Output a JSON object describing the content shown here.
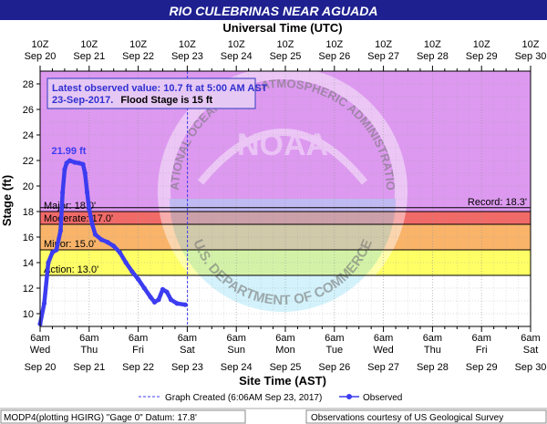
{
  "chart_data": {
    "type": "line",
    "title": "RIO CULEBRINAS NEAR AGUADA",
    "top_axis_title": "Universal Time (UTC)",
    "xlabel": "Site Time (AST)",
    "ylabel": "Stage (ft)",
    "ylim": [
      9,
      29
    ],
    "xlim": [
      "2017-09-20 06:00",
      "2017-09-30 06:00"
    ],
    "x_time_zone": "AST",
    "grid": true,
    "y_ticks": [
      10,
      12,
      14,
      16,
      18,
      20,
      22,
      24,
      26,
      28
    ],
    "y_tick_labels": [
      "10",
      "12",
      "14",
      "16",
      "18",
      "20",
      "22",
      "24",
      "26",
      "28"
    ],
    "top_tick_labels": [
      {
        "time": "10Z",
        "date": "Sep 20"
      },
      {
        "time": "10Z",
        "date": "Sep 21"
      },
      {
        "time": "10Z",
        "date": "Sep 22"
      },
      {
        "time": "10Z",
        "date": "Sep 23"
      },
      {
        "time": "10Z",
        "date": "Sep 24"
      },
      {
        "time": "10Z",
        "date": "Sep 25"
      },
      {
        "time": "10Z",
        "date": "Sep 26"
      },
      {
        "time": "10Z",
        "date": "Sep 27"
      },
      {
        "time": "10Z",
        "date": "Sep 28"
      },
      {
        "time": "10Z",
        "date": "Sep 29"
      },
      {
        "time": "10Z",
        "date": "Sep 30"
      }
    ],
    "bottom_tick_labels": [
      {
        "time": "6am",
        "day": "Wed",
        "date": "Sep 20"
      },
      {
        "time": "6am",
        "day": "Thu",
        "date": "Sep 21"
      },
      {
        "time": "6am",
        "day": "Fri",
        "date": "Sep 22"
      },
      {
        "time": "6am",
        "day": "Sat",
        "date": "Sep 23"
      },
      {
        "time": "6am",
        "day": "Sun",
        "date": "Sep 24"
      },
      {
        "time": "6am",
        "day": "Mon",
        "date": "Sep 25"
      },
      {
        "time": "6am",
        "day": "Tue",
        "date": "Sep 26"
      },
      {
        "time": "6am",
        "day": "Wed",
        "date": "Sep 27"
      },
      {
        "time": "6am",
        "day": "Thu",
        "date": "Sep 28"
      },
      {
        "time": "6am",
        "day": "Fri",
        "date": "Sep 29"
      },
      {
        "time": "6am",
        "day": "Sat",
        "date": "Sep 30"
      }
    ],
    "flood_categories": [
      {
        "name": "major",
        "label": "Major: 18.0'",
        "from": 18.0,
        "to": 29,
        "color": "#dd99f0"
      },
      {
        "name": "moderate",
        "label": "Moderate: 17.0'",
        "from": 17.0,
        "to": 18.0,
        "color": "#f06a68"
      },
      {
        "name": "minor",
        "label": "Minor: 15.0'",
        "from": 15.0,
        "to": 17.0,
        "color": "#f9b46a"
      },
      {
        "name": "action",
        "label": "Action: 13.0'",
        "from": 13.0,
        "to": 15.0,
        "color": "#ffff66"
      }
    ],
    "record": {
      "label": "Record: 18.3'",
      "value": 18.3
    },
    "info_box": {
      "line1": "Latest observed value: 10.7 ft at 5:00 AM AST",
      "line2_date": "23-Sep-2017.",
      "line2_rest": "Flood Stage is 15 ft"
    },
    "peak_label": {
      "text": "21.99 ft",
      "x": "2017-09-20 20:30",
      "y": 21.99
    },
    "graph_created_x": "2017-09-23 06:06",
    "series": [
      {
        "name": "Observed",
        "color": "#3c3cf0",
        "points": [
          [
            "2017-09-20 06:00",
            9.2
          ],
          [
            "2017-09-20 08:00",
            10.8
          ],
          [
            "2017-09-20 10:00",
            14.0
          ],
          [
            "2017-09-20 12:00",
            14.8
          ],
          [
            "2017-09-20 14:00",
            15.0
          ],
          [
            "2017-09-20 16:00",
            16.5
          ],
          [
            "2017-09-20 17:00",
            19.5
          ],
          [
            "2017-09-20 18:00",
            21.3
          ],
          [
            "2017-09-20 19:00",
            21.8
          ],
          [
            "2017-09-20 20:30",
            21.99
          ],
          [
            "2017-09-20 23:00",
            21.85
          ],
          [
            "2017-09-21 01:00",
            21.8
          ],
          [
            "2017-09-21 03:00",
            21.7
          ],
          [
            "2017-09-21 04:00",
            21.0
          ],
          [
            "2017-09-21 05:00",
            19.5
          ],
          [
            "2017-09-21 06:00",
            18.2
          ],
          [
            "2017-09-21 07:30",
            17.0
          ],
          [
            "2017-09-21 09:00",
            16.2
          ],
          [
            "2017-09-21 12:00",
            15.8
          ],
          [
            "2017-09-21 15:00",
            15.6
          ],
          [
            "2017-09-21 18:00",
            15.3
          ],
          [
            "2017-09-21 21:00",
            14.8
          ],
          [
            "2017-09-22 00:00",
            14.0
          ],
          [
            "2017-09-22 03:00",
            13.3
          ],
          [
            "2017-09-22 06:00",
            12.7
          ],
          [
            "2017-09-22 09:00",
            12.0
          ],
          [
            "2017-09-22 12:00",
            11.3
          ],
          [
            "2017-09-22 14:00",
            10.9
          ],
          [
            "2017-09-22 16:00",
            11.1
          ],
          [
            "2017-09-22 18:00",
            11.9
          ],
          [
            "2017-09-22 20:00",
            11.7
          ],
          [
            "2017-09-22 22:00",
            11.1
          ],
          [
            "2017-09-23 01:00",
            10.8
          ],
          [
            "2017-09-23 05:00",
            10.7
          ]
        ]
      }
    ]
  },
  "legend": {
    "graph_created": "Graph Created (6:06AM Sep 23, 2017)",
    "observed": "Observed"
  },
  "footer": {
    "left": "MODP4(plotting HGIRG) \"Gage 0\" Datum: 17.8'",
    "right": "Observations courtesy of US Geological Survey"
  },
  "watermark": {
    "text_top": "NATIONAL OCEANIC AND ATMOSPHERIC ADMINISTRATION",
    "text_bottom": "U.S. DEPARTMENT OF COMMERCE",
    "logo": "NOAA"
  },
  "colors": {
    "title_bg": "#1e2090",
    "title_fg": "#ffffff",
    "line": "#3c3cf0",
    "info_border": "#5050c8",
    "info_fg": "#3030d0"
  }
}
